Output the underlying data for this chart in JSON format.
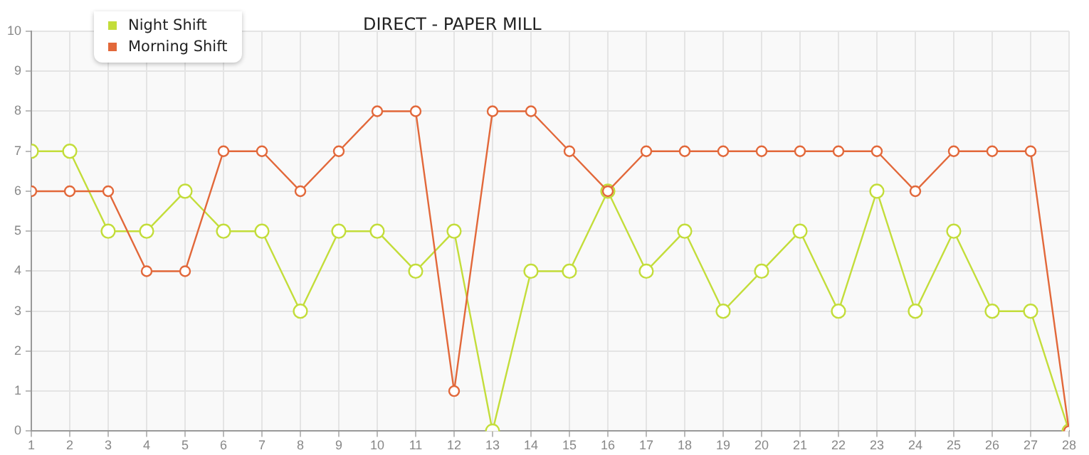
{
  "chart_data": {
    "type": "line",
    "title": "DIRECT - PAPER MILL",
    "x": [
      1,
      2,
      3,
      4,
      5,
      6,
      7,
      8,
      9,
      10,
      11,
      12,
      13,
      14,
      15,
      16,
      17,
      18,
      19,
      20,
      21,
      22,
      23,
      24,
      25,
      26,
      27,
      28
    ],
    "xlim": [
      1,
      28
    ],
    "xticks": [
      1,
      2,
      3,
      4,
      5,
      6,
      7,
      8,
      9,
      10,
      11,
      12,
      13,
      14,
      15,
      16,
      17,
      18,
      19,
      20,
      21,
      22,
      23,
      24,
      25,
      26,
      27,
      28
    ],
    "ylim": [
      0,
      10
    ],
    "yticks": [
      0,
      1,
      2,
      3,
      4,
      5,
      6,
      7,
      8,
      9,
      10
    ],
    "grid": true,
    "legend": "top left",
    "marker": "circle",
    "line_style": "solid",
    "series": [
      {
        "name": "Night Shift",
        "color": "#c3dd3a",
        "values": [
          7,
          7,
          5,
          5,
          6,
          5,
          5,
          3,
          5,
          5,
          4,
          5,
          0,
          4,
          4,
          6,
          4,
          5,
          3,
          4,
          5,
          3,
          6,
          3,
          5,
          3,
          3,
          0
        ]
      },
      {
        "name": "Morning Shift",
        "color": "#e2683a",
        "values": [
          6,
          6,
          6,
          4,
          4,
          7,
          7,
          6,
          7,
          8,
          8,
          1,
          8,
          8,
          7,
          6,
          7,
          7,
          7,
          7,
          7,
          7,
          7,
          6,
          7,
          7,
          7,
          0
        ]
      }
    ]
  }
}
